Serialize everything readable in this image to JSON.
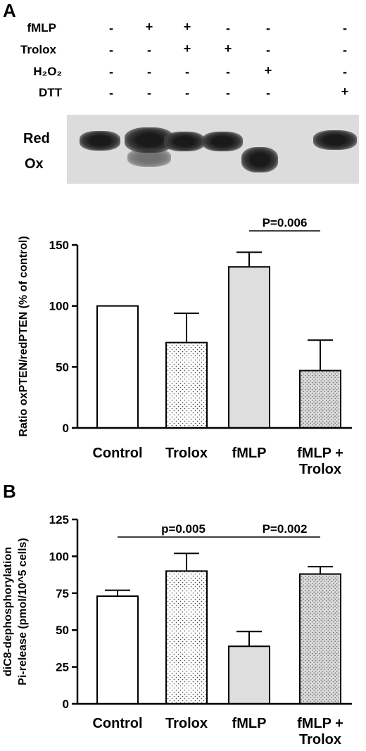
{
  "panelA": {
    "letter": "A",
    "treatment_table": {
      "rows": [
        {
          "label": "fMLP",
          "signs": [
            "-",
            "+",
            "+",
            "-",
            "-",
            "-"
          ]
        },
        {
          "label": "Trolox",
          "signs": [
            "-",
            "-",
            "+",
            "+",
            "-",
            "-"
          ]
        },
        {
          "label": "H₂O₂",
          "signs": [
            "-",
            "-",
            "-",
            "-",
            "+",
            "-"
          ]
        },
        {
          "label": "DTT",
          "signs": [
            "-",
            "-",
            "-",
            "-",
            "-",
            "+"
          ]
        }
      ]
    },
    "blot": {
      "band_labels": {
        "red": "Red",
        "ox": "Ox"
      }
    }
  },
  "panelB": {
    "letter": "B"
  },
  "chart_data": [
    {
      "type": "bar",
      "categories": [
        "Control",
        "Trolox",
        "fMLP",
        "fMLP +\nTrolox"
      ],
      "values": [
        100,
        70,
        132,
        47
      ],
      "errors": [
        0,
        24,
        12,
        25
      ],
      "title": "",
      "xlabel": "",
      "ylabel": "Ratio oxPTEN/redPTEN (% of control)",
      "ylim": [
        0,
        150
      ],
      "yticks": [
        0,
        50,
        100,
        150
      ],
      "bar_fills": [
        "white",
        "dots",
        "light-gray",
        "dots-gray"
      ],
      "annotations": [
        {
          "text": "P=0.006",
          "from": "fMLP",
          "to": "fMLP +\nTrolox"
        }
      ],
      "grid": false
    },
    {
      "type": "bar",
      "categories": [
        "Control",
        "Trolox",
        "fMLP",
        "fMLP +\nTrolox"
      ],
      "values": [
        73,
        90,
        39,
        88
      ],
      "errors": [
        4,
        12,
        10,
        5
      ],
      "title": "",
      "xlabel": "",
      "ylabel": "diC8-dephosphorylation\nPi-release (pmol/10^5 cells)",
      "ylim": [
        0,
        125
      ],
      "yticks": [
        0,
        25,
        50,
        75,
        100,
        125
      ],
      "bar_fills": [
        "white",
        "dots",
        "light-gray",
        "dots-gray"
      ],
      "annotations": [
        {
          "text": "p=0.005",
          "from": "Control",
          "to": "fMLP"
        },
        {
          "text": "P=0.002",
          "from": "fMLP",
          "to": "fMLP +\nTrolox"
        }
      ],
      "grid": false
    }
  ],
  "colors": {
    "ink": "#000000",
    "bar_gray": "#dedede",
    "blot_bg": "#dcdcdc"
  }
}
